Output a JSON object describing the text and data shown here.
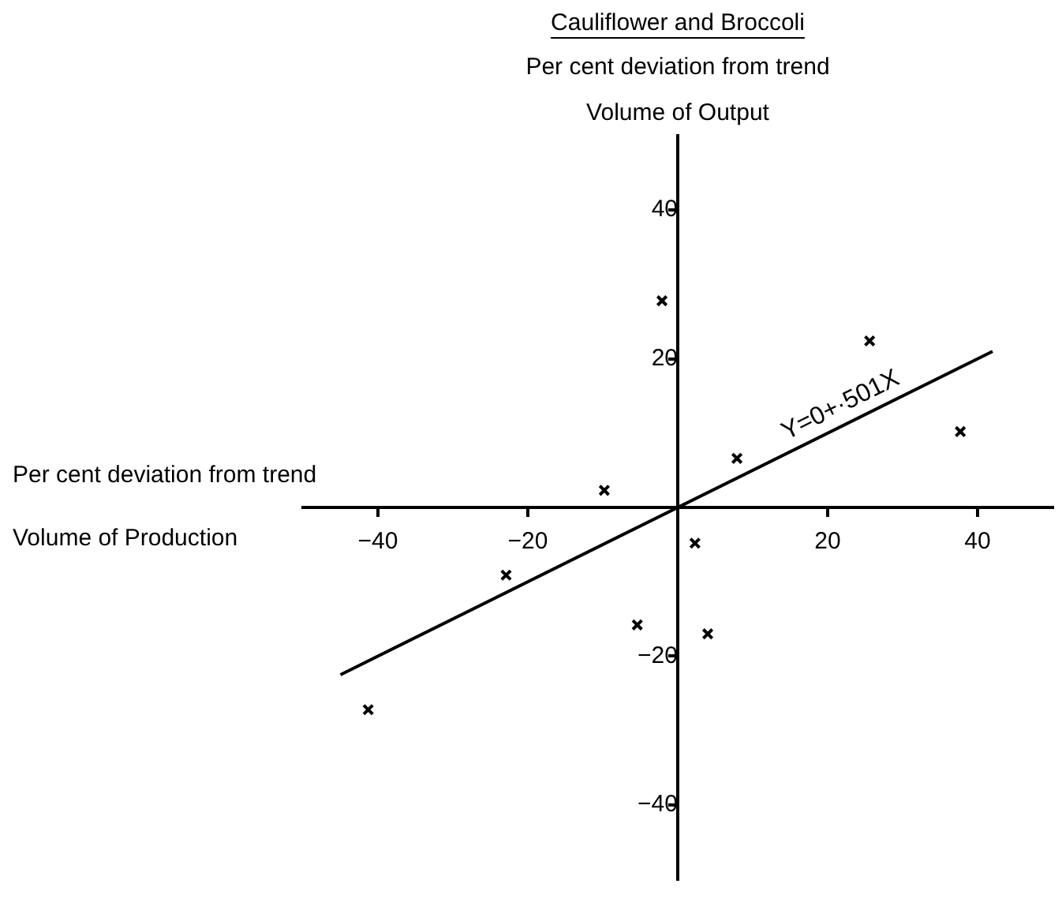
{
  "chart_data": {
    "type": "scatter",
    "title": "Cauliflower and Broccoli",
    "ylabel": "Per cent deviation from trend\nVolume of Output",
    "xlabel": "Per cent deviation from trend\nVolume of Production",
    "xlim": [
      -50,
      50
    ],
    "ylim": [
      -50,
      50
    ],
    "xticks": [
      -40,
      -20,
      20,
      40
    ],
    "yticks": [
      -40,
      -20,
      20,
      40
    ],
    "grid": false,
    "legend": false,
    "marker": "cross",
    "series": [
      {
        "color": "#000000",
        "x": [
          -41.3,
          -22.9,
          -9.8,
          -2.1,
          -5.4,
          2.3,
          4.0,
          7.9,
          25.6,
          37.7
        ],
        "values": [
          -27.2,
          -9.1,
          2.3,
          27.8,
          -15.8,
          -4.8,
          -17.0,
          6.6,
          22.4,
          10.2
        ]
      },
      {
        "type": "line",
        "color": "#000000",
        "marker": "none",
        "x": [
          -45,
          42
        ],
        "values": [
          -22.5,
          21.0
        ]
      }
    ],
    "annotations": [
      "Y=0+·501X"
    ]
  }
}
